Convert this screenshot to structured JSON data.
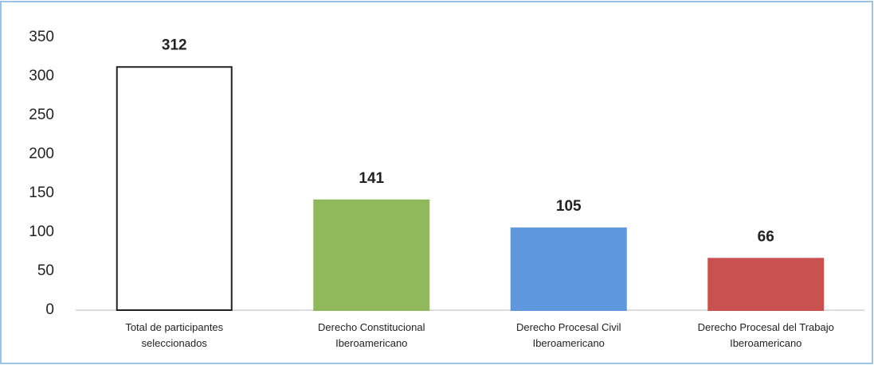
{
  "chart_data": {
    "type": "bar",
    "categories": [
      "Total  de participantes seleccionados",
      "Derecho Constitucional Iberoamericano",
      "Derecho Procesal Civil Iberoamericano",
      "Derecho Procesal del Trabajo Iberoamericano"
    ],
    "values": [
      312,
      141,
      105,
      66
    ],
    "colors": [
      "#ffffff",
      "#8fb95a",
      "#5e97dd",
      "#c9514f"
    ],
    "edgecolors": [
      "#222222",
      "#8fb95a",
      "#5e97dd",
      "#c9514f"
    ],
    "ylim": [
      0,
      350
    ],
    "yticks": [
      0,
      50,
      100,
      150,
      200,
      250,
      300,
      350
    ],
    "grid": false
  }
}
